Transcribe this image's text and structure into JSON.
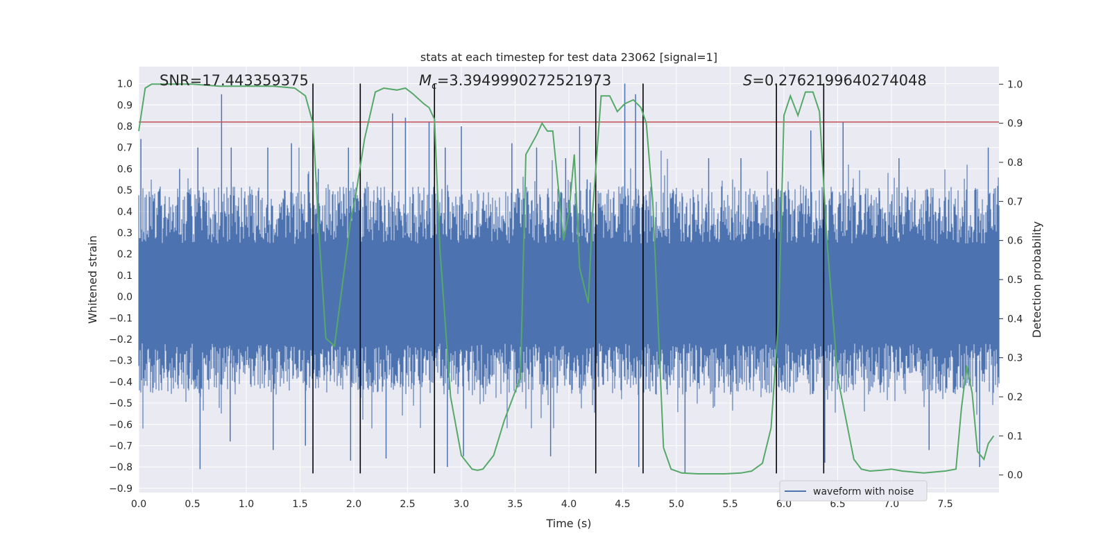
{
  "chart_data": {
    "type": "line",
    "title": "stats at each timestep for test data 23062 [signal=1]",
    "xlabel": "Time (s)",
    "ylabel_left": "Whitened strain",
    "ylabel_right": "Detection probability",
    "xlim": [
      0,
      8
    ],
    "ylim_left": [
      -0.92,
      1.08
    ],
    "ylim_right": [
      -0.045,
      1.045
    ],
    "grid": true,
    "x_ticks": [
      "0.0",
      "0.5",
      "1.0",
      "1.5",
      "2.0",
      "2.5",
      "3.0",
      "3.5",
      "4.0",
      "4.5",
      "5.0",
      "5.5",
      "6.0",
      "6.5",
      "7.0",
      "7.5"
    ],
    "y_ticks_left": [
      "1.0",
      "0.9",
      "0.8",
      "0.7",
      "0.6",
      "0.5",
      "0.4",
      "0.3",
      "0.2",
      "0.1",
      "0.0",
      "−0.1",
      "−0.2",
      "−0.3",
      "−0.4",
      "−0.5",
      "−0.6",
      "−0.7",
      "−0.8",
      "−0.9"
    ],
    "y_ticks_right": [
      "1.0",
      "0.9",
      "0.8",
      "0.7",
      "0.6",
      "0.5",
      "0.4",
      "0.3",
      "0.2",
      "0.1",
      "0.0"
    ],
    "annotations": {
      "snr": "SNR=17.443359375",
      "mc_symbol": "M",
      "mc_sub": "c",
      "mc_value": "=3.3949990272521973",
      "s_symbol": "S",
      "s_value": "=0.2762199640274048"
    },
    "threshold": {
      "value": 0.82,
      "color": "#c44e52"
    },
    "vertical_lines": [
      1.62,
      2.06,
      2.75,
      4.25,
      4.69,
      5.93,
      6.37
    ],
    "vertical_line_range": [
      -0.83,
      1.0
    ],
    "strain_series": {
      "name": "waveform with noise",
      "color": "#4c72b0",
      "typical_range": [
        -0.4,
        0.45
      ],
      "spikes": [
        [
          0.02,
          0.74
        ],
        [
          0.38,
          0.6
        ],
        [
          0.55,
          0.7
        ],
        [
          0.57,
          -0.81
        ],
        [
          0.77,
          0.95
        ],
        [
          0.86,
          0.7
        ],
        [
          0.85,
          -0.68
        ],
        [
          1.2,
          0.7
        ],
        [
          1.25,
          -0.72
        ],
        [
          1.42,
          0.72
        ],
        [
          1.55,
          -0.7
        ],
        [
          1.67,
          0.6
        ],
        [
          1.95,
          0.7
        ],
        [
          1.97,
          -0.77
        ],
        [
          2.3,
          -0.76
        ],
        [
          2.36,
          0.86
        ],
        [
          2.48,
          0.84
        ],
        [
          2.7,
          0.82
        ],
        [
          2.85,
          0.7
        ],
        [
          2.87,
          -0.8
        ],
        [
          3.0,
          0.8
        ],
        [
          3.02,
          -0.75
        ],
        [
          3.47,
          0.72
        ],
        [
          3.7,
          0.7
        ],
        [
          3.83,
          -0.75
        ],
        [
          3.97,
          0.65
        ],
        [
          4.1,
          0.8
        ],
        [
          4.17,
          0.55
        ],
        [
          4.52,
          1.0
        ],
        [
          4.62,
          0.95
        ],
        [
          4.65,
          -0.8
        ],
        [
          5.08,
          -0.83
        ],
        [
          5.3,
          0.65
        ],
        [
          5.6,
          0.65
        ],
        [
          6.25,
          0.78
        ],
        [
          6.38,
          -0.78
        ],
        [
          6.55,
          0.82
        ],
        [
          7.07,
          0.65
        ],
        [
          7.35,
          -0.72
        ],
        [
          7.82,
          -0.8
        ],
        [
          7.9,
          0.7
        ]
      ]
    },
    "probability_series": {
      "color": "#55a868",
      "x": [
        0.0,
        0.06,
        0.12,
        0.25,
        0.5,
        0.75,
        1.0,
        1.25,
        1.45,
        1.55,
        1.62,
        1.68,
        1.74,
        1.82,
        1.9,
        1.97,
        2.02,
        2.1,
        2.2,
        2.28,
        2.4,
        2.48,
        2.55,
        2.65,
        2.7,
        2.75,
        2.8,
        2.9,
        3.0,
        3.1,
        3.15,
        3.2,
        3.3,
        3.4,
        3.55,
        3.6,
        3.7,
        3.75,
        3.8,
        3.85,
        3.95,
        4.0,
        4.05,
        4.1,
        4.18,
        4.22,
        4.3,
        4.38,
        4.45,
        4.52,
        4.6,
        4.67,
        4.72,
        4.78,
        4.88,
        4.95,
        5.05,
        5.2,
        5.45,
        5.6,
        5.7,
        5.8,
        5.88,
        5.95,
        6.0,
        6.06,
        6.13,
        6.2,
        6.27,
        6.33,
        6.4,
        6.5,
        6.65,
        6.72,
        6.8,
        6.9,
        7.0,
        7.1,
        7.3,
        7.5,
        7.6,
        7.65,
        7.7,
        7.75,
        7.8,
        7.86,
        7.9,
        7.95
      ],
      "y": [
        0.88,
        0.99,
        1.0,
        1.0,
        1.0,
        0.995,
        0.995,
        0.995,
        0.99,
        0.97,
        0.9,
        0.6,
        0.35,
        0.33,
        0.5,
        0.65,
        0.72,
        0.86,
        0.98,
        0.99,
        0.985,
        0.99,
        0.975,
        0.95,
        0.94,
        0.91,
        0.58,
        0.2,
        0.05,
        0.015,
        0.012,
        0.015,
        0.05,
        0.14,
        0.25,
        0.82,
        0.87,
        0.9,
        0.88,
        0.88,
        0.6,
        0.67,
        0.82,
        0.53,
        0.44,
        0.67,
        0.97,
        0.97,
        0.93,
        0.95,
        0.96,
        0.94,
        0.9,
        0.7,
        0.07,
        0.015,
        0.005,
        0.003,
        0.003,
        0.005,
        0.01,
        0.03,
        0.12,
        0.4,
        0.92,
        0.97,
        0.92,
        0.98,
        0.98,
        0.93,
        0.6,
        0.25,
        0.04,
        0.015,
        0.01,
        0.012,
        0.015,
        0.01,
        0.005,
        0.01,
        0.015,
        0.17,
        0.28,
        0.21,
        0.06,
        0.04,
        0.08,
        0.1
      ]
    },
    "legend": {
      "position": "lower-center-right",
      "entries": [
        "waveform with noise"
      ]
    }
  }
}
